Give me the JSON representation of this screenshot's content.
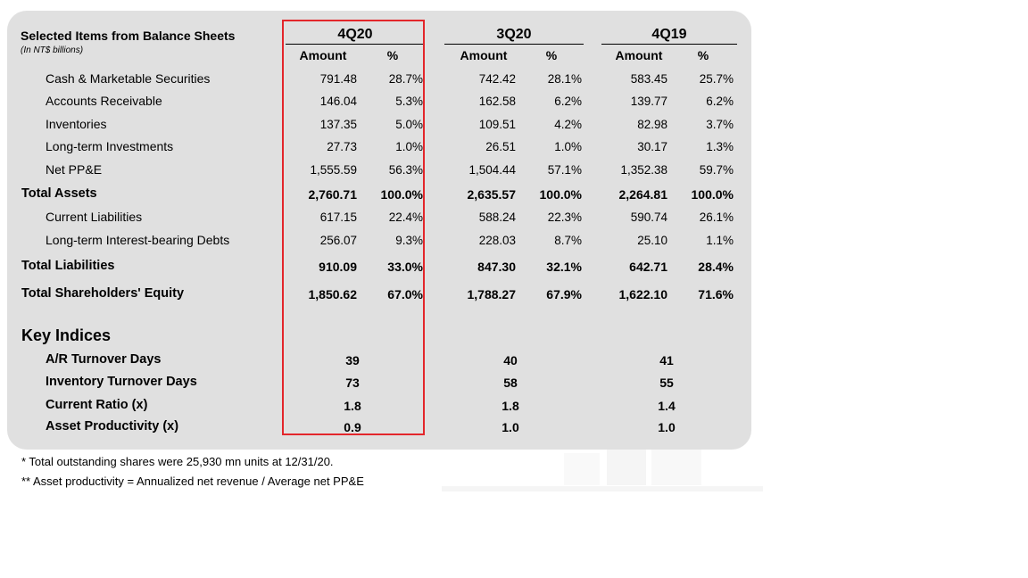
{
  "header": {
    "title": "Selected Items from Balance Sheets",
    "unit": "(In NT$ billions)"
  },
  "periods": [
    {
      "label": "4Q20",
      "amount_header": "Amount",
      "pct_header": "%"
    },
    {
      "label": "3Q20",
      "amount_header": "Amount",
      "pct_header": "%"
    },
    {
      "label": "4Q19",
      "amount_header": "Amount",
      "pct_header": "%"
    }
  ],
  "rows": [
    {
      "label": "Cash & Marketable Securities",
      "vals": [
        "791.48",
        "28.7%",
        "742.42",
        "28.1%",
        "583.45",
        "25.7%"
      ]
    },
    {
      "label": "Accounts Receivable",
      "vals": [
        "146.04",
        "5.3%",
        "162.58",
        "6.2%",
        "139.77",
        "6.2%"
      ]
    },
    {
      "label": "Inventories",
      "vals": [
        "137.35",
        "5.0%",
        "109.51",
        "4.2%",
        "82.98",
        "3.7%"
      ]
    },
    {
      "label": "Long-term Investments",
      "vals": [
        "27.73",
        "1.0%",
        "26.51",
        "1.0%",
        "30.17",
        "1.3%"
      ]
    },
    {
      "label": "Net PP&E",
      "vals": [
        "1,555.59",
        "56.3%",
        "1,504.44",
        "57.1%",
        "1,352.38",
        "59.7%"
      ]
    },
    {
      "label": "Total Assets",
      "vals": [
        "2,760.71",
        "100.0%",
        "2,635.57",
        "100.0%",
        "2,264.81",
        "100.0%"
      ]
    },
    {
      "label": "Current Liabilities",
      "vals": [
        "617.15",
        "22.4%",
        "588.24",
        "22.3%",
        "590.74",
        "26.1%"
      ]
    },
    {
      "label": "Long-term Interest-bearing Debts",
      "vals": [
        "256.07",
        "9.3%",
        "228.03",
        "8.7%",
        "25.10",
        "1.1%"
      ]
    },
    {
      "label": "Total Liabilities",
      "vals": [
        "910.09",
        "33.0%",
        "847.30",
        "32.1%",
        "642.71",
        "28.4%"
      ]
    },
    {
      "label": "Total Shareholders' Equity",
      "vals": [
        "1,850.62",
        "67.0%",
        "1,788.27",
        "67.9%",
        "1,622.10",
        "71.6%"
      ]
    }
  ],
  "key_indices": {
    "title": "Key Indices",
    "rows": [
      {
        "label": "A/R Turnover Days",
        "vals": [
          "39",
          "40",
          "41"
        ]
      },
      {
        "label": "Inventory Turnover Days",
        "vals": [
          "73",
          "58",
          "55"
        ]
      },
      {
        "label": "Current Ratio (x)",
        "vals": [
          "1.8",
          "1.8",
          "1.4"
        ]
      },
      {
        "label": "Asset Productivity (x)",
        "vals": [
          "0.9",
          "1.0",
          "1.0"
        ]
      }
    ]
  },
  "footnotes": [
    "*  Total outstanding shares were 25,930 mn units at 12/31/20.",
    "** Asset productivity = Annualized net revenue / Average net PP&E"
  ],
  "colors": {
    "panel": "#e0e0e0",
    "highlight": "#e3262b"
  }
}
